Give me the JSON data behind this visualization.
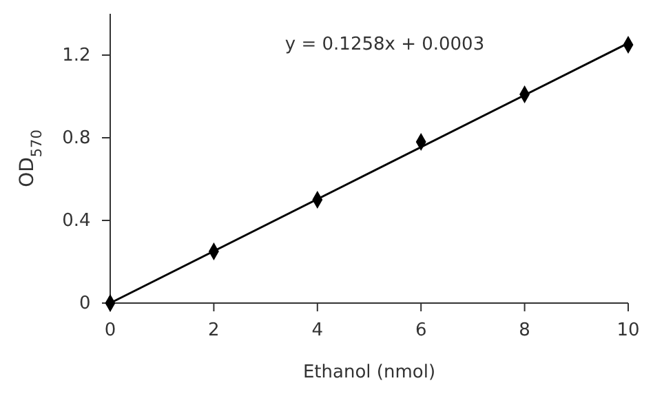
{
  "chart_data": {
    "type": "scatter",
    "xlabel": "Ethanol (nmol)",
    "ylabel": "OD$_{570}$",
    "xlim": [
      0,
      10
    ],
    "ylim": [
      0,
      1.4
    ],
    "xticks": [
      0,
      2,
      4,
      6,
      8,
      10
    ],
    "yticks": [
      0,
      0.4,
      0.8,
      {
        "value": 1.2,
        "label": "1.2"
      }
    ],
    "grid": false,
    "marker": "diamond",
    "annotations": [
      "y = 0.1258x + 0.0003"
    ],
    "series": [
      {
        "color": "#000000",
        "x": [
          0,
          2,
          4,
          6,
          8,
          10
        ],
        "values": [
          0,
          0.25,
          0.5,
          0.78,
          1.01,
          1.25
        ]
      },
      {
        "type": "line",
        "color": "#000000",
        "x": [
          0,
          10
        ],
        "values": [
          0,
          1.258
        ],
        "line_style": "solid",
        "marker": "none"
      }
    ]
  }
}
